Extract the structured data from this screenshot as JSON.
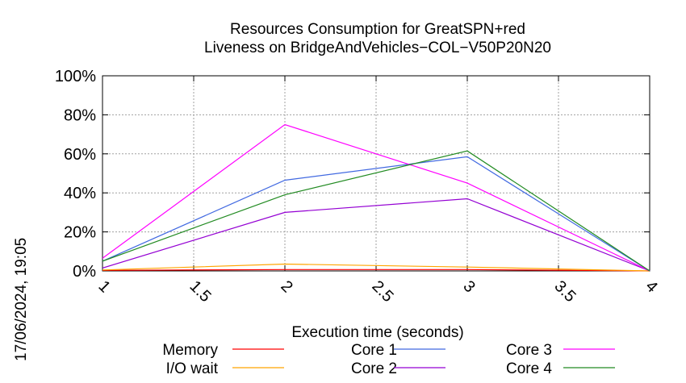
{
  "chart_data": {
    "type": "line",
    "title": "Resources Consumption for GreatSPN+red",
    "subtitle": "Liveness on BridgeAndVehicles−COL−V50P20N20",
    "xlabel": "Execution time (seconds)",
    "ylabel": "",
    "x": [
      1,
      2,
      3,
      4
    ],
    "xlim": [
      1,
      4
    ],
    "ylim": [
      0,
      100
    ],
    "xticks": [
      "1",
      "1.5",
      "2",
      "2.5",
      "3",
      "3.5",
      "4"
    ],
    "yticks": [
      "0%",
      "20%",
      "40%",
      "60%",
      "80%",
      "100%"
    ],
    "grid": true,
    "legend_position": "bottom",
    "series": [
      {
        "name": "Memory",
        "color": "#ff0000",
        "values": [
          0.3,
          0.7,
          0.7,
          0
        ]
      },
      {
        "name": "I/O wait",
        "color": "#ffa500",
        "values": [
          0.5,
          3.5,
          2,
          0
        ]
      },
      {
        "name": "Core 1",
        "color": "#4169e1",
        "values": [
          5,
          46.5,
          58.5,
          0
        ]
      },
      {
        "name": "Core 2",
        "color": "#9400d3",
        "values": [
          1.5,
          30,
          37,
          0
        ]
      },
      {
        "name": "Core 3",
        "color": "#ff00ff",
        "values": [
          6.5,
          75,
          45,
          0
        ]
      },
      {
        "name": "Core 4",
        "color": "#228b22",
        "values": [
          5,
          39,
          61.5,
          0
        ]
      }
    ]
  },
  "timestamp": "17/06/2024, 19:05"
}
